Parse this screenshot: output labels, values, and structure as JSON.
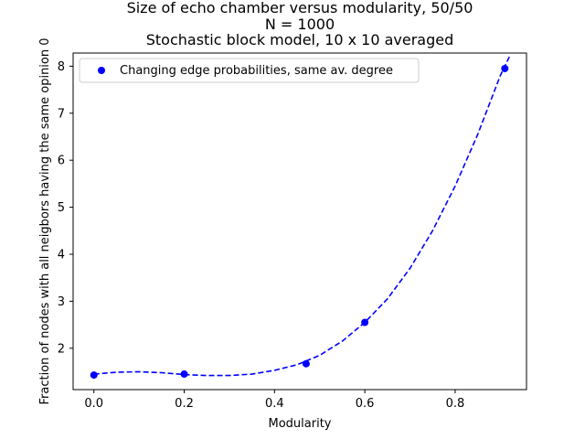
{
  "chart_data": {
    "type": "scatter",
    "title_lines": [
      "Size of echo chamber versus modularity, 50/50",
      "N = 1000",
      "Stochastic block model, 10 x 10 averaged"
    ],
    "xlabel": "Modularity",
    "ylabel": "Fraction of nodes with all neigbors having the same opinion 0",
    "xlim": [
      -0.046,
      0.958
    ],
    "ylim": [
      1.12,
      8.28
    ],
    "xticks": [
      0.0,
      0.2,
      0.4,
      0.6,
      0.8
    ],
    "xtick_labels": [
      "0.0",
      "0.2",
      "0.4",
      "0.6",
      "0.8"
    ],
    "yticks": [
      2,
      3,
      4,
      5,
      6,
      7,
      8
    ],
    "ytick_labels": [
      "2",
      "3",
      "4",
      "5",
      "6",
      "7",
      "8"
    ],
    "grid": false,
    "legend_position": "top-left",
    "series": [
      {
        "name": "Changing edge probabilities, same av. degree",
        "color": "#0000ff",
        "marker": "circle",
        "x": [
          0.0,
          0.2,
          0.47,
          0.6,
          0.91
        ],
        "y": [
          1.43,
          1.45,
          1.67,
          2.55,
          7.95
        ]
      }
    ],
    "fit_curve": {
      "color": "#0000ff",
      "style": "dashed",
      "x": [
        0.0,
        0.05,
        0.1,
        0.15,
        0.2,
        0.25,
        0.3,
        0.35,
        0.4,
        0.45,
        0.5,
        0.55,
        0.6,
        0.65,
        0.7,
        0.75,
        0.8,
        0.85,
        0.9,
        0.92
      ],
      "y": [
        1.45,
        1.49,
        1.5,
        1.48,
        1.44,
        1.42,
        1.42,
        1.45,
        1.53,
        1.65,
        1.85,
        2.15,
        2.55,
        3.05,
        3.7,
        4.5,
        5.45,
        6.55,
        7.8,
        8.2
      ]
    }
  }
}
